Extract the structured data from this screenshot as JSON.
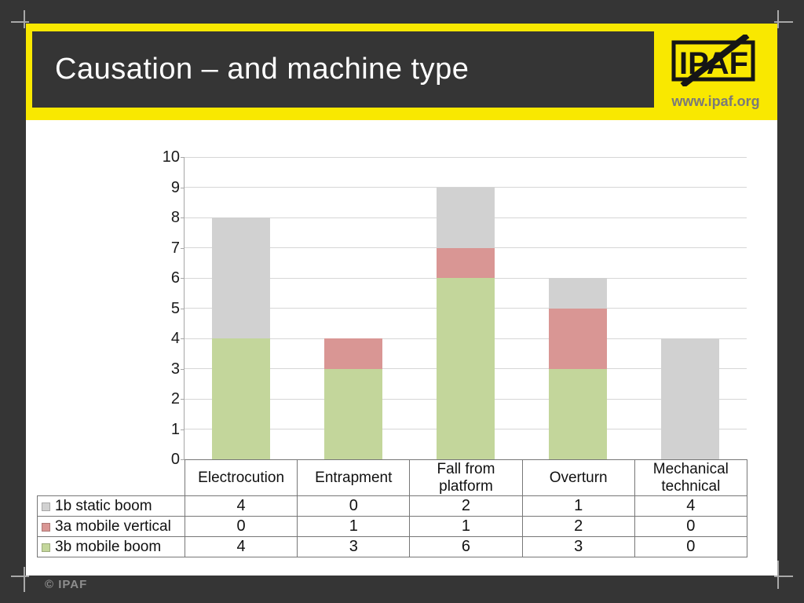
{
  "slide": {
    "title": "Causation – and machine type",
    "logo_text": "IPAF",
    "logo_url": "www.ipaf.org",
    "footer": "© IPAF"
  },
  "colors": {
    "background_dark": "#353535",
    "accent_yellow": "#F9E800",
    "series_gray": "#D1D1D1",
    "series_red": "#D99694",
    "series_green": "#C3D69B",
    "gridline": "#D6D6D6",
    "axis": "#A6A6A6",
    "table_border": "#777777",
    "muted_text": "#7A7A7A"
  },
  "chart_data": {
    "type": "bar",
    "stacked": true,
    "title": "",
    "xlabel": "",
    "ylabel": "",
    "categories": [
      "Electrocution",
      "Entrapment",
      "Fall from platform",
      "Overturn",
      "Mechanical technical"
    ],
    "series": [
      {
        "name": "1b static boom",
        "color_key": "series_gray",
        "values": [
          4,
          0,
          2,
          1,
          4
        ]
      },
      {
        "name": "3a mobile vertical",
        "color_key": "series_red",
        "values": [
          0,
          1,
          1,
          2,
          0
        ]
      },
      {
        "name": "3b mobile boom",
        "color_key": "series_green",
        "values": [
          4,
          3,
          6,
          3,
          0
        ]
      }
    ],
    "stack_order_bottom_to_top": [
      "3b mobile boom",
      "3a mobile vertical",
      "1b static boom"
    ],
    "ylim": [
      0,
      10
    ],
    "ytick_step": 1,
    "yticks": [
      0,
      1,
      2,
      3,
      4,
      5,
      6,
      7,
      8,
      9,
      10
    ],
    "grid": true,
    "legend_position": "data-table-left",
    "totals_by_category": [
      8,
      4,
      9,
      6,
      4
    ]
  }
}
